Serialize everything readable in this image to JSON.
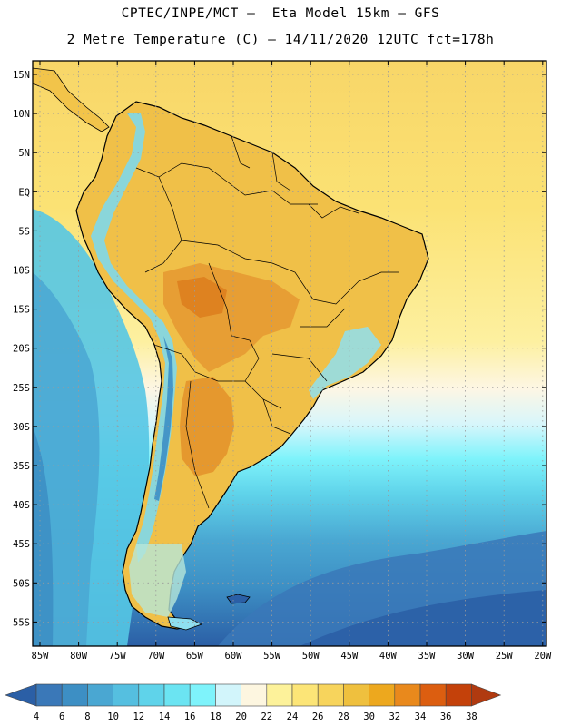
{
  "title": {
    "line1": "CPTEC/INPE/MCT –  Eta Model 15km – GFS",
    "line2": "2 Metre Temperature (C) – 14/11/2020 12UTC fct=178h"
  },
  "axes": {
    "lat_labels": [
      "15N",
      "10N",
      "5N",
      "EQ",
      "5S",
      "10S",
      "15S",
      "20S",
      "25S",
      "30S",
      "35S",
      "40S",
      "45S",
      "50S",
      "55S"
    ],
    "lon_labels": [
      "85W",
      "80W",
      "75W",
      "70W",
      "65W",
      "60W",
      "55W",
      "50W",
      "45W",
      "40W",
      "35W",
      "30W",
      "25W",
      "20W"
    ]
  },
  "legend": {
    "values": [
      "4",
      "6",
      "8",
      "10",
      "12",
      "14",
      "16",
      "18",
      "20",
      "22",
      "24",
      "26",
      "28",
      "30",
      "32",
      "34",
      "36",
      "38"
    ],
    "colors": [
      "#2b5fa6",
      "#3a78b8",
      "#3d8fc4",
      "#4aa7d2",
      "#55bfe0",
      "#5fd3ea",
      "#6be4f2",
      "#7ef3fb",
      "#d2f5fb",
      "#fdf6e0",
      "#fdf29a",
      "#fce577",
      "#f7d45c",
      "#efc03e",
      "#eda81e",
      "#e9891c",
      "#dc5e10",
      "#c4410a",
      "#b03a10"
    ]
  },
  "colors": {
    "ocean_warm": "#fbe06a",
    "land_base": "#f2c44a",
    "land_hot": "#e58a2a"
  }
}
